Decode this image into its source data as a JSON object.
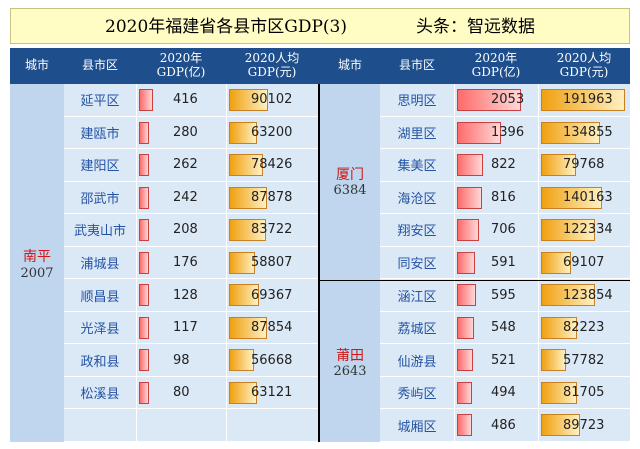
{
  "title": "2020年福建省各县市区GDP(3)",
  "source": "头条：智远数据",
  "headers": {
    "city": "城市",
    "county": "县市区",
    "gdp": "2020年\nGDP(亿)",
    "per_capita": "2020人均\nGDP(元)"
  },
  "left": {
    "city": {
      "name": "南平",
      "gdp": "2007"
    },
    "rows": [
      {
        "county": "延平区",
        "gdp": "416",
        "pc": "90102",
        "gdp_value": 416,
        "pc_value": 90102
      },
      {
        "county": "建瓯市",
        "gdp": "280",
        "pc": "63200",
        "gdp_value": 280,
        "pc_value": 63200
      },
      {
        "county": "建阳区",
        "gdp": "262",
        "pc": "78426",
        "gdp_value": 262,
        "pc_value": 78426
      },
      {
        "county": "邵武市",
        "gdp": "242",
        "pc": "87878",
        "gdp_value": 242,
        "pc_value": 87878
      },
      {
        "county": "武夷山市",
        "gdp": "208",
        "pc": "83722",
        "gdp_value": 208,
        "pc_value": 83722
      },
      {
        "county": "浦城县",
        "gdp": "176",
        "pc": "58807",
        "gdp_value": 176,
        "pc_value": 58807
      },
      {
        "county": "顺昌县",
        "gdp": "128",
        "pc": "69367",
        "gdp_value": 128,
        "pc_value": 69367
      },
      {
        "county": "光泽县",
        "gdp": "117",
        "pc": "87854",
        "gdp_value": 117,
        "pc_value": 87854
      },
      {
        "county": "政和县",
        "gdp": "98",
        "pc": "56668",
        "gdp_value": 98,
        "pc_value": 56668
      },
      {
        "county": "松溪县",
        "gdp": "80",
        "pc": "63121",
        "gdp_value": 80,
        "pc_value": 63121
      }
    ]
  },
  "right": {
    "cities": [
      {
        "name": "厦门",
        "gdp": "6384"
      },
      {
        "name": "莆田",
        "gdp": "2643"
      }
    ],
    "rows": [
      {
        "county": "思明区",
        "gdp": "2053",
        "pc": "191963",
        "gdp_value": 2053,
        "pc_value": 191963
      },
      {
        "county": "湖里区",
        "gdp": "1396",
        "pc": "134855",
        "gdp_value": 1396,
        "pc_value": 134855
      },
      {
        "county": "集美区",
        "gdp": "822",
        "pc": "79768",
        "gdp_value": 822,
        "pc_value": 79768
      },
      {
        "county": "海沧区",
        "gdp": "816",
        "pc": "140163",
        "gdp_value": 816,
        "pc_value": 140163
      },
      {
        "county": "翔安区",
        "gdp": "706",
        "pc": "122334",
        "gdp_value": 706,
        "pc_value": 122334
      },
      {
        "county": "同安区",
        "gdp": "591",
        "pc": "69107",
        "gdp_value": 591,
        "pc_value": 69107
      },
      {
        "county": "涵江区",
        "gdp": "595",
        "pc": "123854",
        "gdp_value": 595,
        "pc_value": 123854
      },
      {
        "county": "荔城区",
        "gdp": "548",
        "pc": "82223",
        "gdp_value": 548,
        "pc_value": 82223
      },
      {
        "county": "仙游县",
        "gdp": "521",
        "pc": "57782",
        "gdp_value": 521,
        "pc_value": 57782
      },
      {
        "county": "秀屿区",
        "gdp": "494",
        "pc": "81705",
        "gdp_value": 494,
        "pc_value": 81705
      },
      {
        "county": "城厢区",
        "gdp": "486",
        "pc": "89723",
        "gdp_value": 486,
        "pc_value": 89723
      }
    ]
  },
  "colors": {
    "header_bg": "#1e4e8c",
    "title_bg": "#fffdc4",
    "city_text": "#d01818",
    "county_text": "#2453a4",
    "gdp_bar": "#ff6b6b",
    "pc_bar": "#f0a010"
  }
}
